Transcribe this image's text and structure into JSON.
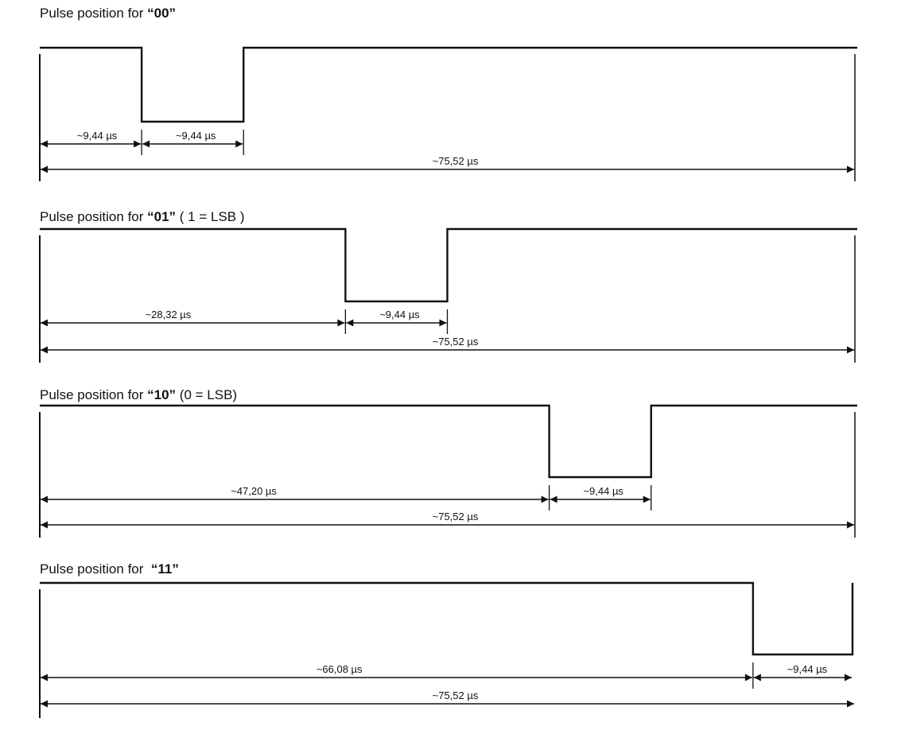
{
  "diagram": {
    "total_us": 75.52,
    "line_color": "#111111",
    "panels": [
      {
        "title_prefix": "Pulse position for ",
        "code": "“00”",
        "title_suffix": "",
        "pulse_start_us": 9.44,
        "pulse_width_us": 9.44,
        "before_label": "~9,44 µs",
        "pulse_label": "~9,44 µs",
        "total_label": "~75,52 µs"
      },
      {
        "title_prefix": "Pulse position for ",
        "code": "“01”",
        "title_suffix": " ( 1 = LSB )",
        "pulse_start_us": 28.32,
        "pulse_width_us": 9.44,
        "before_label": "~28,32 µs",
        "pulse_label": "~9,44 µs",
        "total_label": "~75,52 µs"
      },
      {
        "title_prefix": "Pulse position for ",
        "code": "“10”",
        "title_suffix": " (0 = LSB)",
        "pulse_start_us": 47.2,
        "pulse_width_us": 9.44,
        "before_label": "~47,20 µs",
        "pulse_label": "~9,44 µs",
        "total_label": "~75,52 µs"
      },
      {
        "title_prefix": "Pulse position for  ",
        "code": "“11”",
        "title_suffix": "",
        "pulse_start_us": 66.08,
        "pulse_width_us": 9.44,
        "before_label": "~66,08 µs",
        "pulse_label": "~9,44 µs",
        "total_label": "~75,52 µs"
      }
    ]
  }
}
